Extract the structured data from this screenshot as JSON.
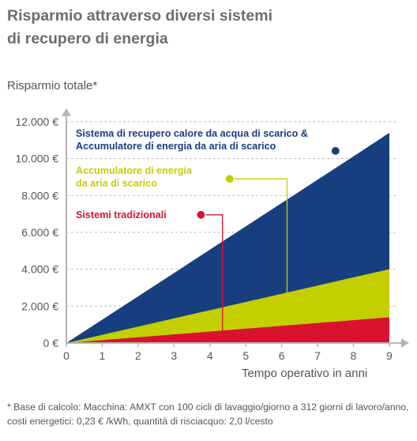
{
  "chart_data": {
    "type": "area",
    "title": "Risparmio attraverso diversi sistemi di recupero di energia",
    "title_lines": [
      "Risparmio attraverso diversi sistemi",
      "di recupero di energia"
    ],
    "ylabel": "Risparmio totale*",
    "xlabel": "Tempo operativo in anni",
    "x": [
      0,
      1,
      2,
      3,
      4,
      5,
      6,
      7,
      8,
      9
    ],
    "x_ticks": [
      "0",
      "1",
      "2",
      "3",
      "4",
      "5",
      "6",
      "7",
      "8",
      "9"
    ],
    "y_ticks": [
      {
        "value": 0,
        "label": "0 €"
      },
      {
        "value": 2000,
        "label": "2.000 €"
      },
      {
        "value": 4000,
        "label": "4.000 €"
      },
      {
        "value": 6000,
        "label": "6.000 €"
      },
      {
        "value": 8000,
        "label": "8.000 €"
      },
      {
        "value": 10000,
        "label": "10.000 €"
      },
      {
        "value": 12000,
        "label": "12.000 €"
      }
    ],
    "xlim": [
      0,
      9
    ],
    "ylim": [
      0,
      12000
    ],
    "grid": "horizontal dashed",
    "series": [
      {
        "name": "Sistema di recupero calore da acqua di scarico & Accumulatore di energia da aria di scarico",
        "label_lines": [
          "Sistema di recupero calore da acqua di scarico &",
          "Accumulatore di energia da aria di scarico"
        ],
        "color": "#173f80",
        "values": [
          0,
          1265,
          2530,
          3795,
          5060,
          6325,
          7590,
          8855,
          10120,
          11400
        ],
        "marker_x": 7.5,
        "marker_y": 10420
      },
      {
        "name": "Accumulatore di energia da aria di scarico",
        "label_lines": [
          "Accumulatore di energia",
          "da aria di scarico"
        ],
        "color": "#c4cf00",
        "values": [
          0,
          445,
          890,
          1335,
          1780,
          2225,
          2670,
          3115,
          3560,
          4000
        ],
        "marker_x": 4.55,
        "marker_y": 8900
      },
      {
        "name": "Sistemi tradizionali",
        "label_lines": [
          "Sistemi tradizionali"
        ],
        "color": "#d9122f",
        "values": [
          0,
          155,
          310,
          465,
          620,
          775,
          930,
          1085,
          1240,
          1400
        ],
        "marker_x": 3.75,
        "marker_y": 6950
      }
    ]
  },
  "footnote": "* Base di calcolo: Macchina: AMXT con 100 cicli di lavaggio/giorno a 312 giorni di lavoro/anno, costi energetici: 0,23 € /kWh, quantità di risciacquo: 2,0 l/cesto"
}
